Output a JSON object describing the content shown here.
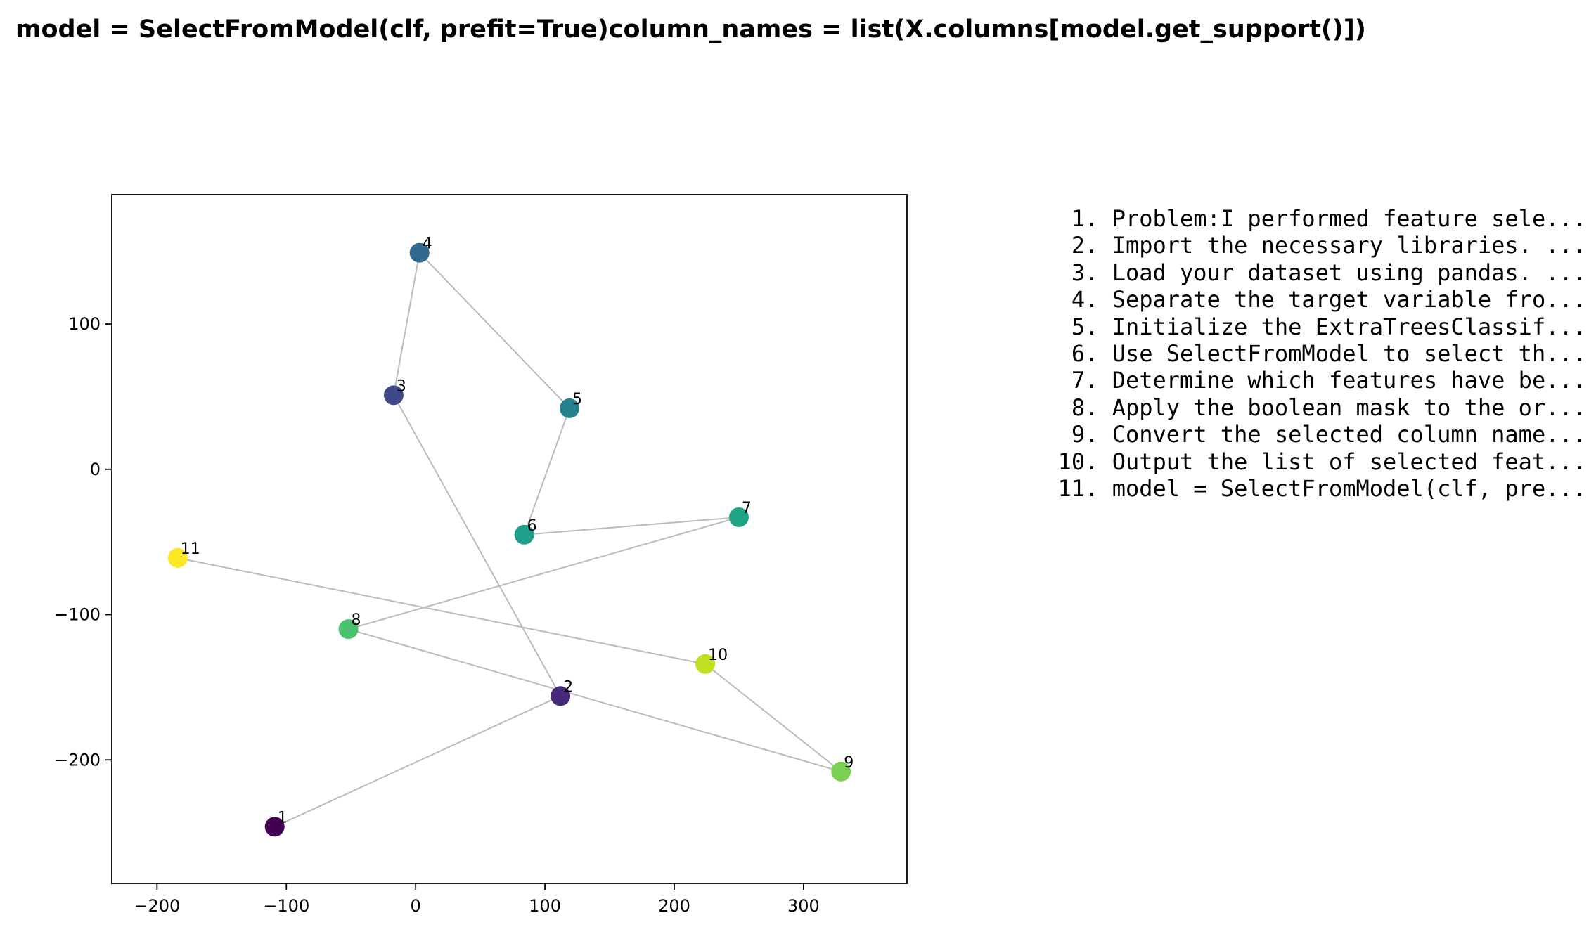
{
  "title": "model = SelectFromModel(clf, prefit=True)column_names = list(X.columns[model.get_support()])",
  "chart_data": {
    "type": "scatter",
    "connected": true,
    "colormap": "viridis",
    "line_color": "#bbbbbb",
    "xlim": [
      -235,
      380
    ],
    "ylim": [
      -285,
      189
    ],
    "xticks": [
      -200,
      -100,
      0,
      100,
      200,
      300
    ],
    "yticks": [
      -200,
      -100,
      0,
      100
    ],
    "xtick_labels": [
      "−200",
      "−100",
      "0",
      "100",
      "200",
      "300"
    ],
    "ytick_labels": [
      "−200",
      "−100",
      "0",
      "100"
    ],
    "points": [
      {
        "label": "1",
        "x": -109,
        "y": -246,
        "color": "#440154"
      },
      {
        "label": "2",
        "x": 112,
        "y": -156,
        "color": "#482878"
      },
      {
        "label": "3",
        "x": -17,
        "y": 51,
        "color": "#3e4989"
      },
      {
        "label": "4",
        "x": 3,
        "y": 149,
        "color": "#31688e"
      },
      {
        "label": "5",
        "x": 119,
        "y": 42,
        "color": "#26828e"
      },
      {
        "label": "6",
        "x": 84,
        "y": -45,
        "color": "#1f9e89"
      },
      {
        "label": "7",
        "x": 250,
        "y": -33,
        "color": "#20a486"
      },
      {
        "label": "8",
        "x": -52,
        "y": -110,
        "color": "#4ac16d"
      },
      {
        "label": "9",
        "x": 329,
        "y": -208,
        "color": "#7ad151"
      },
      {
        "label": "10",
        "x": 224,
        "y": -134,
        "color": "#c2df23"
      },
      {
        "label": "11",
        "x": -184,
        "y": -61,
        "color": "#fde725"
      }
    ]
  },
  "steps": [
    {
      "num": "1.",
      "text": "Problem:I performed feature sele..."
    },
    {
      "num": "2.",
      "text": "Import the necessary libraries. ..."
    },
    {
      "num": "3.",
      "text": "Load your dataset using pandas. ..."
    },
    {
      "num": "4.",
      "text": "Separate the target variable fro..."
    },
    {
      "num": "5.",
      "text": "Initialize the ExtraTreesClassif..."
    },
    {
      "num": "6.",
      "text": "Use SelectFromModel to select th..."
    },
    {
      "num": "7.",
      "text": "Determine which features have be..."
    },
    {
      "num": "8.",
      "text": "Apply the boolean mask to the or..."
    },
    {
      "num": "9.",
      "text": "Convert the selected column name..."
    },
    {
      "num": "10.",
      "text": "Output the list of selected feat..."
    },
    {
      "num": "11.",
      "text": "model = SelectFromModel(clf, pre..."
    }
  ]
}
